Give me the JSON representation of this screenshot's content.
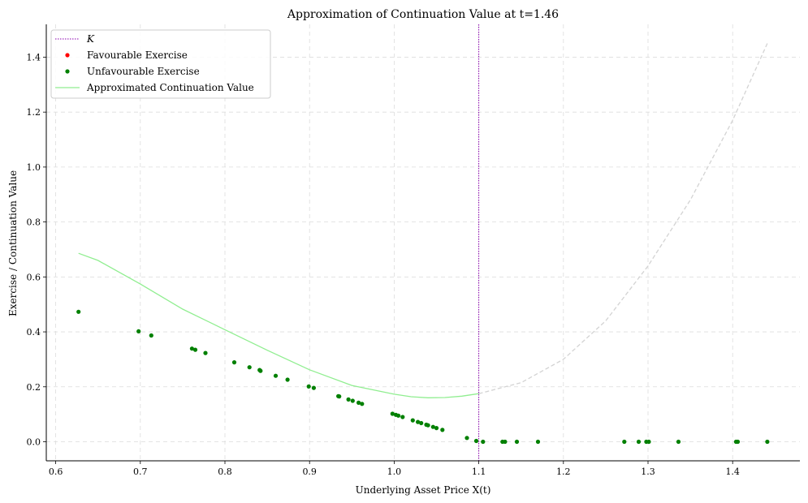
{
  "chart_data": {
    "type": "scatter",
    "title": "Approximation of Continuation Value at t=1.46",
    "xlabel": "Underlying Asset Price X(t)",
    "ylabel": "Exercise / Continuation Value",
    "xlim": [
      0.59,
      1.48
    ],
    "ylim": [
      -0.07,
      1.52
    ],
    "grid": true,
    "legend_position": "top-left",
    "x_ticks": [
      "0.6",
      "0.7",
      "0.8",
      "0.9",
      "1.0",
      "1.1",
      "1.2",
      "1.3",
      "1.4"
    ],
    "y_ticks": [
      "0.0",
      "0.2",
      "0.4",
      "0.6",
      "0.8",
      "1.0",
      "1.2",
      "1.4"
    ],
    "strike": {
      "name": "K",
      "value": 1.1,
      "color": "#8b00b0"
    },
    "series": [
      {
        "name": "Favourable Exercise",
        "color": "#ff0000",
        "kind": "scatter",
        "points": []
      },
      {
        "name": "Unfavourable Exercise",
        "color": "#008000",
        "kind": "scatter",
        "points": [
          [
            0.627,
            0.473
          ],
          [
            0.698,
            0.402
          ],
          [
            0.713,
            0.387
          ],
          [
            0.761,
            0.339
          ],
          [
            0.765,
            0.335
          ],
          [
            0.777,
            0.323
          ],
          [
            0.811,
            0.289
          ],
          [
            0.829,
            0.271
          ],
          [
            0.841,
            0.261
          ],
          [
            0.842,
            0.258
          ],
          [
            0.86,
            0.24
          ],
          [
            0.874,
            0.226
          ],
          [
            0.899,
            0.201
          ],
          [
            0.905,
            0.196
          ],
          [
            0.934,
            0.166
          ],
          [
            0.935,
            0.165
          ],
          [
            0.946,
            0.154
          ],
          [
            0.951,
            0.149
          ],
          [
            0.958,
            0.142
          ],
          [
            0.962,
            0.138
          ],
          [
            0.998,
            0.102
          ],
          [
            1.002,
            0.098
          ],
          [
            1.005,
            0.095
          ],
          [
            1.01,
            0.09
          ],
          [
            1.022,
            0.078
          ],
          [
            1.028,
            0.072
          ],
          [
            1.032,
            0.068
          ],
          [
            1.038,
            0.062
          ],
          [
            1.04,
            0.06
          ],
          [
            1.046,
            0.054
          ],
          [
            1.05,
            0.05
          ],
          [
            1.057,
            0.043
          ],
          [
            1.086,
            0.014
          ],
          [
            1.097,
            0.003
          ],
          [
            1.105,
            0.0
          ],
          [
            1.128,
            0.0
          ],
          [
            1.131,
            0.0
          ],
          [
            1.145,
            0.0
          ],
          [
            1.17,
            0.0
          ],
          [
            1.272,
            0.0
          ],
          [
            1.289,
            0.0
          ],
          [
            1.298,
            0.0
          ],
          [
            1.301,
            0.0
          ],
          [
            1.336,
            0.0
          ],
          [
            1.404,
            0.0
          ],
          [
            1.406,
            0.0
          ],
          [
            1.441,
            0.0
          ]
        ]
      },
      {
        "name": "Approximated Continuation Value",
        "color": "#90ee90",
        "kind": "line",
        "points": [
          [
            0.627,
            0.686
          ],
          [
            0.65,
            0.66
          ],
          [
            0.7,
            0.574
          ],
          [
            0.75,
            0.483
          ],
          [
            0.8,
            0.408
          ],
          [
            0.85,
            0.333
          ],
          [
            0.9,
            0.262
          ],
          [
            0.95,
            0.205
          ],
          [
            1.0,
            0.173
          ],
          [
            1.02,
            0.164
          ],
          [
            1.04,
            0.16
          ],
          [
            1.06,
            0.161
          ],
          [
            1.08,
            0.166
          ],
          [
            1.1,
            0.175
          ]
        ]
      },
      {
        "kind": "line",
        "color": "#d3d3d3",
        "dashed": true,
        "points": [
          [
            1.1,
            0.175
          ],
          [
            1.15,
            0.215
          ],
          [
            1.2,
            0.3
          ],
          [
            1.25,
            0.44
          ],
          [
            1.3,
            0.64
          ],
          [
            1.35,
            0.88
          ],
          [
            1.4,
            1.17
          ],
          [
            1.441,
            1.45
          ]
        ]
      }
    ]
  }
}
